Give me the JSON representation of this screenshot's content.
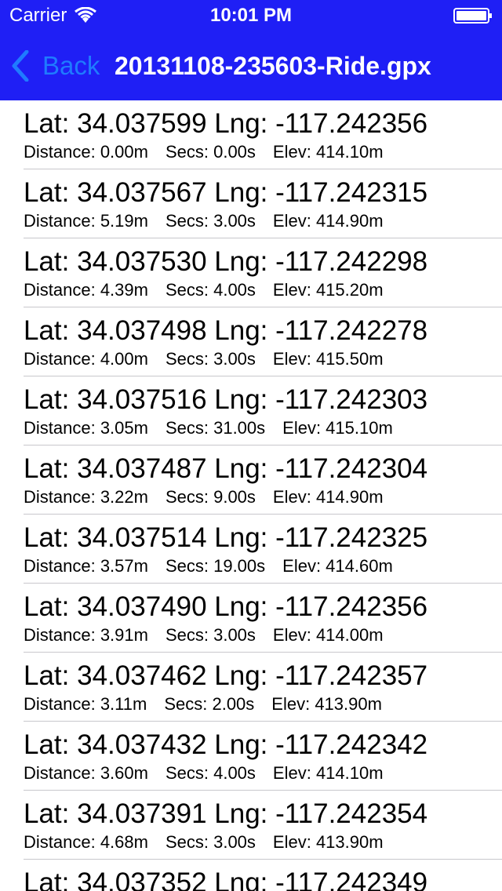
{
  "status_bar": {
    "carrier": "Carrier",
    "time": "10:01 PM",
    "wifi_icon": "wifi-icon",
    "battery_icon": "battery-icon"
  },
  "nav": {
    "back_label": "Back",
    "back_icon": "chevron-left-icon",
    "title": "20131108-235603-Ride.gpx"
  },
  "colors": {
    "nav_background": "#1f1ff5",
    "back_tint": "#1f7bff",
    "separator": "#c8c7cc"
  },
  "points": [
    {
      "title": "Lat: 34.037599 Lng: -117.242356",
      "distance": "Distance: 0.00m",
      "secs": "Secs: 0.00s",
      "elev": "Elev: 414.10m"
    },
    {
      "title": "Lat: 34.037567 Lng: -117.242315",
      "distance": "Distance: 5.19m",
      "secs": "Secs: 3.00s",
      "elev": "Elev: 414.90m"
    },
    {
      "title": "Lat: 34.037530 Lng: -117.242298",
      "distance": "Distance: 4.39m",
      "secs": "Secs: 4.00s",
      "elev": "Elev: 415.20m"
    },
    {
      "title": "Lat: 34.037498 Lng: -117.242278",
      "distance": "Distance: 4.00m",
      "secs": "Secs: 3.00s",
      "elev": "Elev: 415.50m"
    },
    {
      "title": "Lat: 34.037516 Lng: -117.242303",
      "distance": "Distance: 3.05m",
      "secs": "Secs: 31.00s",
      "elev": "Elev: 415.10m"
    },
    {
      "title": "Lat: 34.037487 Lng: -117.242304",
      "distance": "Distance: 3.22m",
      "secs": "Secs: 9.00s",
      "elev": "Elev: 414.90m"
    },
    {
      "title": "Lat: 34.037514 Lng: -117.242325",
      "distance": "Distance: 3.57m",
      "secs": "Secs: 19.00s",
      "elev": "Elev: 414.60m"
    },
    {
      "title": "Lat: 34.037490 Lng: -117.242356",
      "distance": "Distance: 3.91m",
      "secs": "Secs: 3.00s",
      "elev": "Elev: 414.00m"
    },
    {
      "title": "Lat: 34.037462 Lng: -117.242357",
      "distance": "Distance: 3.11m",
      "secs": "Secs: 2.00s",
      "elev": "Elev: 413.90m"
    },
    {
      "title": "Lat: 34.037432 Lng: -117.242342",
      "distance": "Distance: 3.60m",
      "secs": "Secs: 4.00s",
      "elev": "Elev: 414.10m"
    },
    {
      "title": "Lat: 34.037391 Lng: -117.242354",
      "distance": "Distance: 4.68m",
      "secs": "Secs: 3.00s",
      "elev": "Elev: 413.90m"
    },
    {
      "title": "Lat: 34.037352 Lng: -117.242349",
      "distance": "",
      "secs": "",
      "elev": ""
    }
  ]
}
